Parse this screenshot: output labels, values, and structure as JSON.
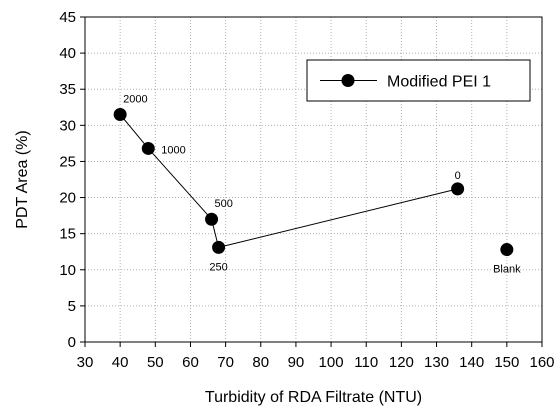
{
  "chart_data": {
    "type": "scatter",
    "xlabel": "Turbidity of RDA Filtrate (NTU)",
    "ylabel": "PDT Area (%)",
    "xlim": [
      30,
      160
    ],
    "ylim": [
      0,
      45
    ],
    "xticks": [
      "30",
      "40",
      "50",
      "60",
      "70",
      "80",
      "90",
      "100",
      "110",
      "120",
      "130",
      "140",
      "150",
      "160"
    ],
    "yticks": [
      "0",
      "5",
      "10",
      "15",
      "20",
      "25",
      "30",
      "35",
      "40",
      "45"
    ],
    "grid": true,
    "legend_position": "top-right",
    "series": [
      {
        "name": "Modified PEI 1",
        "connected": true,
        "points": [
          {
            "x": 40,
            "y": 31.5,
            "label": "2000",
            "label_pos": "above-right"
          },
          {
            "x": 48,
            "y": 26.8,
            "label": "1000",
            "label_pos": "right"
          },
          {
            "x": 66,
            "y": 17.0,
            "label": "500",
            "label_pos": "above-right"
          },
          {
            "x": 68,
            "y": 13.1,
            "label": "250",
            "label_pos": "below-left"
          },
          {
            "x": 136,
            "y": 21.2,
            "label": "0",
            "label_pos": "above"
          }
        ]
      },
      {
        "name": "",
        "connected": false,
        "points": [
          {
            "x": 150,
            "y": 12.8,
            "label": "Blank",
            "label_pos": "below"
          }
        ]
      }
    ],
    "colors": {
      "marker": "#000000",
      "line": "#000000",
      "grid": "#b0b0b0"
    }
  }
}
